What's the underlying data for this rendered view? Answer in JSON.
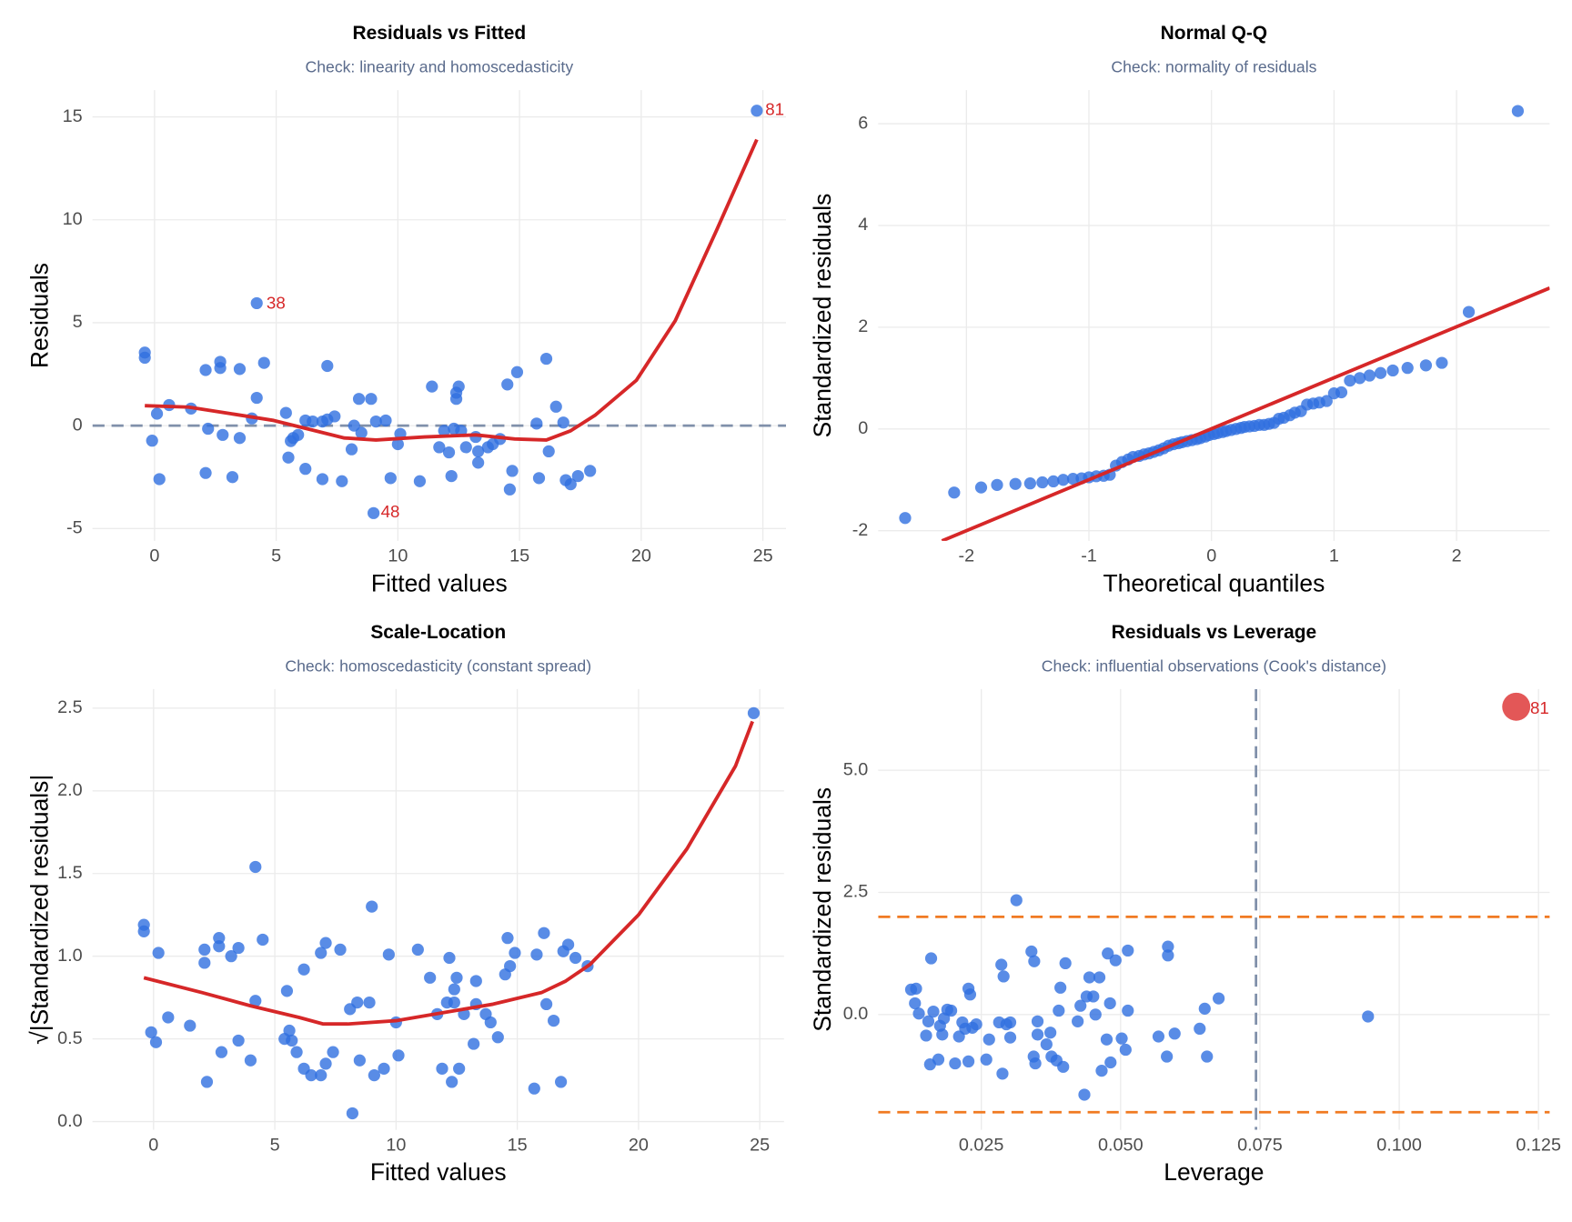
{
  "chart_data": [
    {
      "type": "scatter",
      "title": "Residuals vs Fitted",
      "subtitle": "Check: linearity and homoscedasticity",
      "x_label": "Fitted values",
      "y_label": "Residuals",
      "xlim": [
        -2.55,
        25.95
      ],
      "ylim": [
        -5.6,
        16.3
      ],
      "xticks": [
        0,
        5,
        10,
        15,
        20,
        25
      ],
      "yticks": [
        -5,
        0,
        5,
        10,
        15
      ],
      "grid": true,
      "points": {
        "color": "#2f6fe0",
        "x": [
          -0.4,
          -0.4,
          -0.1,
          0.1,
          0.2,
          0.6,
          1.5,
          2.1,
          2.1,
          2.2,
          2.7,
          2.7,
          2.8,
          3.2,
          3.5,
          3.5,
          4.0,
          4.2,
          4.2,
          4.5,
          5.4,
          5.5,
          5.6,
          5.7,
          5.9,
          6.2,
          6.2,
          6.5,
          6.9,
          6.9,
          7.1,
          7.1,
          7.4,
          7.7,
          8.1,
          8.2,
          8.4,
          8.5,
          8.9,
          9.0,
          9.1,
          9.5,
          9.7,
          10.0,
          10.1,
          10.9,
          11.4,
          11.7,
          11.9,
          12.1,
          12.2,
          12.3,
          12.4,
          12.4,
          12.5,
          12.6,
          12.8,
          13.2,
          13.3,
          13.3,
          13.7,
          13.9,
          14.2,
          14.5,
          14.6,
          14.7,
          14.9,
          15.7,
          15.8,
          16.1,
          16.2,
          16.5,
          16.8,
          16.9,
          17.1,
          17.4,
          17.9,
          24.75
        ],
        "values": [
          3.55,
          3.3,
          -0.73,
          0.58,
          -2.6,
          1.0,
          0.83,
          2.7,
          -2.3,
          -0.15,
          3.1,
          2.8,
          -0.45,
          -2.5,
          2.75,
          -0.6,
          0.35,
          5.95,
          1.35,
          3.05,
          0.62,
          -1.55,
          -0.75,
          -0.6,
          -0.45,
          -2.1,
          0.25,
          0.2,
          -2.6,
          0.2,
          0.3,
          2.9,
          0.45,
          -2.7,
          -1.15,
          0.0,
          1.3,
          -0.35,
          1.3,
          -4.25,
          0.2,
          0.25,
          -2.55,
          -0.9,
          -0.4,
          -2.7,
          1.9,
          -1.05,
          -0.25,
          -1.3,
          -2.45,
          -0.15,
          1.3,
          1.6,
          1.9,
          -0.25,
          -1.05,
          -0.55,
          -1.8,
          -1.25,
          -1.05,
          -0.9,
          -0.65,
          2.0,
          -3.1,
          -2.2,
          2.6,
          0.1,
          -2.55,
          3.25,
          -1.25,
          0.92,
          0.15,
          -2.65,
          -2.85,
          -2.45,
          -2.2,
          15.3
        ]
      },
      "lines": [
        {
          "color": "#d62728",
          "x": [
            -0.4,
            1.4,
            3.3,
            4.9,
            6.6,
            7.8,
            9.1,
            11.1,
            13.2,
            14.8,
            16.1,
            17.1,
            18.1,
            19.8,
            21.4,
            23.1,
            24.75
          ],
          "values": [
            0.97,
            0.9,
            0.55,
            0.25,
            -0.25,
            -0.6,
            -0.7,
            -0.55,
            -0.45,
            -0.65,
            -0.7,
            -0.25,
            0.5,
            2.2,
            5.1,
            9.5,
            13.9
          ]
        }
      ],
      "hlines": [
        {
          "value": 0,
          "color": "#8090aa"
        }
      ],
      "annotations": [
        {
          "text": "38",
          "x": 4.6,
          "y": 5.9,
          "color": "#d62728"
        },
        {
          "text": "48",
          "x": 9.3,
          "y": -4.25,
          "color": "#d62728"
        },
        {
          "text": "81",
          "x": 25.1,
          "y": 15.3,
          "color": "#d62728"
        }
      ]
    },
    {
      "type": "scatter",
      "title": "Normal Q-Q",
      "subtitle": "Check: normality of residuals",
      "x_label": "Theoretical quantiles",
      "y_label": "Standardized residuals",
      "xlim": [
        -2.72,
        2.76
      ],
      "ylim": [
        -2.2,
        6.66
      ],
      "xticks": [
        -2,
        -1,
        0,
        1,
        2
      ],
      "yticks": [
        -2,
        0,
        2,
        4,
        6
      ],
      "grid": true,
      "points": {
        "color": "#2f6fe0",
        "x": [
          -2.5,
          -2.1,
          -1.88,
          -1.75,
          -1.6,
          -1.48,
          -1.38,
          -1.29,
          -1.21,
          -1.13,
          -1.06,
          -1.0,
          -0.94,
          -0.88,
          -0.83,
          -0.78,
          -0.73,
          -0.68,
          -0.64,
          -0.59,
          -0.55,
          -0.51,
          -0.47,
          -0.43,
          -0.39,
          -0.35,
          -0.31,
          -0.27,
          -0.24,
          -0.2,
          -0.16,
          -0.12,
          -0.09,
          -0.05,
          -0.02,
          0.02,
          0.05,
          0.09,
          0.12,
          0.16,
          0.2,
          0.24,
          0.27,
          0.31,
          0.35,
          0.39,
          0.43,
          0.47,
          0.51,
          0.55,
          0.59,
          0.64,
          0.68,
          0.73,
          0.78,
          0.83,
          0.88,
          0.94,
          1.0,
          1.06,
          1.13,
          1.21,
          1.29,
          1.38,
          1.48,
          1.6,
          1.75,
          1.88,
          2.1,
          2.5
        ],
        "values": [
          -1.75,
          -1.25,
          -1.15,
          -1.1,
          -1.08,
          -1.07,
          -1.05,
          -1.03,
          -1.0,
          -0.98,
          -0.97,
          -0.95,
          -0.93,
          -0.92,
          -0.9,
          -0.72,
          -0.65,
          -0.6,
          -0.55,
          -0.53,
          -0.5,
          -0.48,
          -0.45,
          -0.42,
          -0.38,
          -0.33,
          -0.3,
          -0.28,
          -0.26,
          -0.24,
          -0.22,
          -0.2,
          -0.18,
          -0.15,
          -0.12,
          -0.1,
          -0.08,
          -0.06,
          -0.04,
          -0.02,
          0.0,
          0.02,
          0.04,
          0.05,
          0.06,
          0.08,
          0.08,
          0.1,
          0.12,
          0.2,
          0.22,
          0.27,
          0.32,
          0.35,
          0.48,
          0.5,
          0.52,
          0.55,
          0.7,
          0.72,
          0.95,
          1.0,
          1.05,
          1.1,
          1.15,
          1.2,
          1.25,
          1.3,
          2.3,
          6.25
        ]
      },
      "lines": [
        {
          "color": "#d62728",
          "x": [
            -2.2,
            2.76
          ],
          "values": [
            -2.2,
            2.77
          ]
        }
      ]
    },
    {
      "type": "scatter",
      "title": "Scale-Location",
      "subtitle": "Check: homoscedasticity (constant spread)",
      "x_label": "Fitted values",
      "y_label": "√|Standardized residuals|",
      "xlim": [
        -2.52,
        26.0
      ],
      "ylim": [
        -0.05,
        2.615
      ],
      "xticks": [
        0,
        5,
        10,
        15,
        20,
        25
      ],
      "yticks": [
        {
          "value": 0,
          "label": "0.0"
        },
        0.5,
        {
          "value": 1,
          "label": "1.0"
        },
        1.5,
        {
          "value": 2,
          "label": "2.0"
        },
        2.5
      ],
      "grid": true,
      "points": {
        "color": "#2f6fe0",
        "x": [
          -0.4,
          -0.4,
          -0.1,
          0.1,
          0.2,
          0.6,
          1.5,
          2.1,
          2.1,
          2.2,
          2.7,
          2.7,
          2.8,
          3.2,
          3.5,
          3.5,
          4.0,
          4.2,
          4.2,
          4.5,
          5.4,
          5.5,
          5.6,
          5.7,
          5.9,
          6.2,
          6.2,
          6.5,
          6.9,
          6.9,
          7.1,
          7.1,
          7.4,
          7.7,
          8.1,
          8.2,
          8.4,
          8.5,
          8.9,
          9.0,
          9.1,
          9.5,
          9.7,
          10.0,
          10.1,
          10.9,
          11.4,
          11.7,
          11.9,
          12.1,
          12.2,
          12.3,
          12.4,
          12.4,
          12.5,
          12.6,
          12.8,
          13.2,
          13.3,
          13.3,
          13.7,
          13.9,
          14.2,
          14.5,
          14.6,
          14.7,
          14.9,
          15.7,
          15.8,
          16.1,
          16.2,
          16.5,
          16.8,
          16.9,
          17.1,
          17.4,
          17.9,
          24.75
        ],
        "values": [
          1.19,
          1.15,
          0.54,
          0.48,
          1.02,
          0.63,
          0.58,
          1.04,
          0.96,
          0.24,
          1.11,
          1.06,
          0.42,
          1.0,
          1.05,
          0.49,
          0.37,
          1.54,
          0.73,
          1.1,
          0.5,
          0.79,
          0.55,
          0.49,
          0.42,
          0.92,
          0.32,
          0.28,
          1.02,
          0.28,
          0.35,
          1.08,
          0.42,
          1.04,
          0.68,
          0.05,
          0.72,
          0.37,
          0.72,
          1.3,
          0.28,
          0.32,
          1.01,
          0.6,
          0.4,
          1.04,
          0.87,
          0.65,
          0.32,
          0.72,
          0.99,
          0.24,
          0.72,
          0.8,
          0.87,
          0.32,
          0.65,
          0.47,
          0.85,
          0.71,
          0.65,
          0.6,
          0.51,
          0.89,
          1.11,
          0.94,
          1.02,
          0.2,
          1.01,
          1.14,
          0.71,
          0.61,
          0.24,
          1.03,
          1.07,
          0.99,
          0.94,
          2.47
        ]
      },
      "lines": [
        {
          "color": "#d62728",
          "x": [
            -0.4,
            2,
            4,
            6,
            7,
            8,
            10,
            12,
            14,
            16,
            17,
            18,
            20,
            22,
            24,
            24.7
          ],
          "values": [
            0.87,
            0.78,
            0.7,
            0.63,
            0.59,
            0.59,
            0.61,
            0.66,
            0.71,
            0.78,
            0.85,
            0.95,
            1.25,
            1.65,
            2.15,
            2.42
          ]
        }
      ]
    },
    {
      "type": "scatter",
      "title": "Residuals vs Leverage",
      "subtitle": "Check: influential observations (Cook's distance)",
      "x_label": "Leverage",
      "y_label": "Standardized residuals",
      "xlim": [
        0.0065,
        0.127
      ],
      "ylim": [
        -2.36,
        6.66
      ],
      "xticks": [
        0.025,
        {
          "value": 0.05,
          "label": "0.050"
        },
        0.075,
        {
          "value": 0.1,
          "label": "0.100"
        },
        0.125
      ],
      "yticks": [
        {
          "value": 0,
          "label": "0.0"
        },
        2.5,
        {
          "value": 5,
          "label": "5.0"
        }
      ],
      "grid": true,
      "points": {
        "color": "#2f6fe0",
        "x": [
          0.0124,
          0.0133,
          0.0131,
          0.0138,
          0.0151,
          0.0155,
          0.0158,
          0.016,
          0.0164,
          0.0173,
          0.0176,
          0.018,
          0.0183,
          0.0189,
          0.0196,
          0.0203,
          0.021,
          0.0216,
          0.0221,
          0.0227,
          0.0227,
          0.023,
          0.0234,
          0.0241,
          0.0259,
          0.0264,
          0.0282,
          0.0286,
          0.0288,
          0.029,
          0.0295,
          0.0302,
          0.0302,
          0.0313,
          0.034,
          0.0344,
          0.0345,
          0.0347,
          0.0351,
          0.0351,
          0.0367,
          0.0374,
          0.0376,
          0.0385,
          0.0389,
          0.0392,
          0.0397,
          0.0401,
          0.0423,
          0.0428,
          0.0435,
          0.0439,
          0.0444,
          0.0451,
          0.0455,
          0.0462,
          0.0466,
          0.0475,
          0.0477,
          0.0481,
          0.0482,
          0.0491,
          0.0502,
          0.0509,
          0.0513,
          0.0513,
          0.0568,
          0.0583,
          0.0585,
          0.0585,
          0.0597,
          0.0642,
          0.0651,
          0.0655,
          0.0676,
          0.0944
        ],
        "values": [
          0.51,
          0.53,
          0.23,
          0.02,
          -0.43,
          -0.14,
          -1.02,
          1.15,
          0.06,
          -0.92,
          -0.23,
          -0.41,
          -0.08,
          0.1,
          0.08,
          -1.0,
          -0.45,
          -0.16,
          -0.29,
          0.53,
          -0.96,
          0.41,
          -0.27,
          -0.2,
          -0.92,
          -0.51,
          -0.16,
          1.02,
          -1.21,
          0.78,
          -0.2,
          -0.16,
          -0.47,
          2.34,
          1.29,
          -0.86,
          1.09,
          -1.0,
          -0.41,
          -0.14,
          -0.61,
          -0.37,
          -0.86,
          -0.94,
          0.08,
          0.55,
          -1.07,
          1.05,
          -0.14,
          0.18,
          -1.64,
          0.37,
          0.76,
          0.37,
          0.0,
          0.76,
          -1.15,
          -0.51,
          1.25,
          0.23,
          -0.98,
          1.11,
          -0.49,
          -0.72,
          1.31,
          0.08,
          -0.45,
          -0.86,
          1.39,
          1.21,
          -0.39,
          -0.29,
          0.12,
          -0.86,
          0.33,
          -0.04
        ]
      },
      "highlight_points": {
        "color": "#e04545",
        "x": [
          0.121
        ],
        "values": [
          6.3
        ]
      },
      "hlines": [
        {
          "value": 2,
          "color": "#f07a22"
        },
        {
          "value": -2,
          "color": "#f07a22"
        }
      ],
      "vlines": [
        {
          "value": 0.0743,
          "color": "#8090aa"
        }
      ],
      "annotations": [
        {
          "text": "81",
          "x": 0.1235,
          "y": 6.25,
          "color": "#d62728"
        }
      ]
    }
  ]
}
